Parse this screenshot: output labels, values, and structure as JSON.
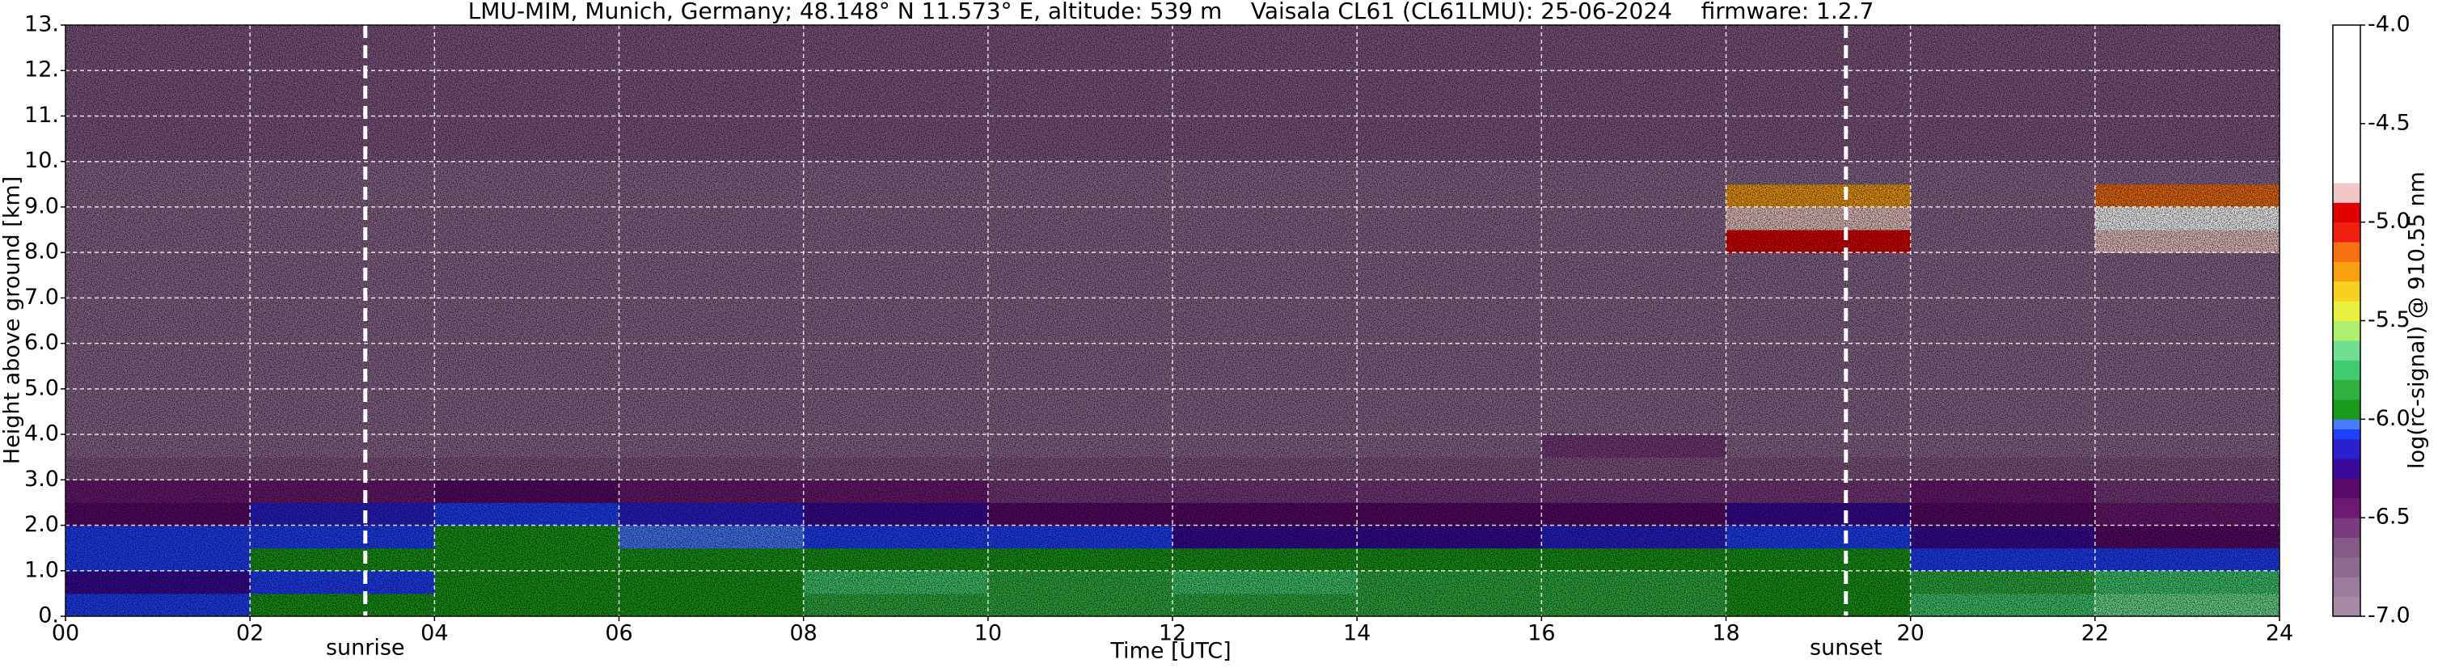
{
  "chart_data": {
    "type": "heatmap",
    "title": "LMU-MIM, Munich, Germany; 48.148° N 11.573° E, altitude: 539 m    Vaisala CL61 (CL61LMU): 25-06-2024    firmware: 1.2.7",
    "x_label": "Time [UTC]",
    "y_label": "Height above ground [km]",
    "colorbar_label": "log(rc-signal) @ 910.55 nm",
    "xlim": [
      0,
      24
    ],
    "ylim": [
      0,
      13
    ],
    "clim": [
      -7,
      -4
    ],
    "grid": true,
    "xticks": [
      {
        "value": 0,
        "label": "00"
      },
      {
        "value": 2,
        "label": "02"
      },
      {
        "value": 4,
        "label": "04"
      },
      {
        "value": 6,
        "label": "06"
      },
      {
        "value": 8,
        "label": "08"
      },
      10,
      12,
      14,
      16,
      18,
      20,
      22,
      24
    ],
    "yticks": [
      {
        "value": 0,
        "label": "0."
      },
      {
        "value": 1,
        "label": "1.0"
      },
      {
        "value": 2,
        "label": "2.0"
      },
      {
        "value": 3,
        "label": "3.0"
      },
      {
        "value": 4,
        "label": "4.0"
      },
      {
        "value": 5,
        "label": "5.0"
      },
      {
        "value": 6,
        "label": "6.0"
      },
      {
        "value": 7,
        "label": "7.0"
      },
      {
        "value": 8,
        "label": "8.0"
      },
      {
        "value": 9,
        "label": "9.0"
      },
      {
        "value": 10,
        "label": "10."
      },
      {
        "value": 11,
        "label": "11."
      },
      {
        "value": 12,
        "label": "12."
      },
      {
        "value": 13,
        "label": "13."
      }
    ],
    "cticks": [
      {
        "value": -4,
        "label": "-4.0"
      },
      -4.5,
      {
        "value": -5,
        "label": "-5.0"
      },
      -5.5,
      {
        "value": -6,
        "label": "-6.0"
      },
      -6.5,
      {
        "value": -7,
        "label": "-7.0"
      }
    ],
    "annotations": [
      {
        "text": "sunrise",
        "x": 3.25
      },
      {
        "text": "sunset",
        "x": 19.3
      }
    ],
    "colorscale": [
      {
        "value": -7.0,
        "color": "#a68aa6"
      },
      {
        "value": -6.9,
        "color": "#9c7c9c"
      },
      {
        "value": -6.8,
        "color": "#8e6a90"
      },
      {
        "value": -6.7,
        "color": "#845a86"
      },
      {
        "value": -6.6,
        "color": "#7a3c7e"
      },
      {
        "value": -6.5,
        "color": "#6e1a74"
      },
      {
        "value": -6.4,
        "color": "#5a0a6a"
      },
      {
        "value": -6.3,
        "color": "#3a0a9a"
      },
      {
        "value": -6.2,
        "color": "#2a20d0"
      },
      {
        "value": -6.1,
        "color": "#2040ff"
      },
      {
        "value": -6.05,
        "color": "#4a7aff"
      },
      {
        "value": -6.0,
        "color": "#1a9a1a"
      },
      {
        "value": -5.9,
        "color": "#30b040"
      },
      {
        "value": -5.8,
        "color": "#40cc70"
      },
      {
        "value": -5.7,
        "color": "#70e090"
      },
      {
        "value": -5.6,
        "color": "#b0f070"
      },
      {
        "value": -5.5,
        "color": "#e8f040"
      },
      {
        "value": -5.4,
        "color": "#f8d020"
      },
      {
        "value": -5.3,
        "color": "#f8a010"
      },
      {
        "value": -5.2,
        "color": "#f87010"
      },
      {
        "value": -5.1,
        "color": "#f02010"
      },
      {
        "value": -5.0,
        "color": "#e00000"
      },
      {
        "value": -4.9,
        "color": "#f0c8c8"
      },
      {
        "value": -4.8,
        "color": "#ffffff"
      }
    ],
    "x_edges": [
      0,
      2,
      4,
      6,
      8,
      10,
      12,
      14,
      16,
      18,
      20,
      22,
      24
    ],
    "y_edges": [
      0,
      0.5,
      1,
      1.5,
      2,
      2.5,
      3,
      3.5,
      4,
      4.5,
      5,
      5.5,
      6,
      6.5,
      7,
      7.5,
      8,
      8.5,
      9,
      9.5,
      10,
      10.5,
      11,
      11.5,
      12,
      12.5,
      13
    ],
    "z": [
      [
        -6.1,
        -6.0,
        -6.0,
        -6.0,
        -5.9,
        -5.9,
        -5.85,
        -5.9,
        -5.9,
        -6.0,
        -5.8,
        -5.7
      ],
      [
        -6.3,
        -6.1,
        -6.0,
        -6.0,
        -5.8,
        -5.9,
        -5.8,
        -5.9,
        -5.9,
        -6.0,
        -5.9,
        -5.8
      ],
      [
        -6.1,
        -6.0,
        -6.0,
        -6.0,
        -6.0,
        -6.0,
        -6.0,
        -6.0,
        -6.0,
        -6.0,
        -6.1,
        -6.1
      ],
      [
        -6.1,
        -6.1,
        -6.0,
        -6.05,
        -6.1,
        -6.1,
        -6.3,
        -6.3,
        -6.2,
        -6.1,
        -6.3,
        -6.4
      ],
      [
        -6.4,
        -6.2,
        -6.1,
        -6.2,
        -6.3,
        -6.4,
        -6.4,
        -6.4,
        -6.4,
        -6.3,
        -6.4,
        -6.5
      ],
      [
        -6.5,
        -6.5,
        -6.4,
        -6.5,
        -6.5,
        -6.6,
        -6.6,
        -6.6,
        -6.6,
        -6.6,
        -6.5,
        -6.6
      ],
      [
        -6.7,
        -6.7,
        -6.7,
        -6.7,
        -6.7,
        -6.7,
        -6.7,
        -6.7,
        -6.7,
        -6.7,
        -6.7,
        -6.7
      ],
      [
        -6.8,
        -6.8,
        -6.8,
        -6.8,
        -6.8,
        -6.8,
        -6.8,
        -6.8,
        -6.6,
        -6.8,
        -6.8,
        -6.8
      ],
      [
        -6.8,
        -6.8,
        -6.8,
        -6.8,
        -6.8,
        -6.8,
        -6.8,
        -6.8,
        -6.8,
        -6.8,
        -6.8,
        -6.8
      ],
      [
        -6.8,
        -6.8,
        -6.8,
        -6.8,
        -6.8,
        -6.8,
        -6.8,
        -6.8,
        -6.8,
        -6.8,
        -6.8,
        -6.8
      ],
      [
        -6.8,
        -6.8,
        -6.8,
        -6.8,
        -6.8,
        -6.8,
        -6.8,
        -6.8,
        -6.8,
        -6.8,
        -6.8,
        -6.8
      ],
      [
        -6.8,
        -6.8,
        -6.8,
        -6.8,
        -6.8,
        -6.8,
        -6.8,
        -6.8,
        -6.8,
        -6.8,
        -6.8,
        -6.8
      ],
      [
        -6.8,
        -6.8,
        -6.8,
        -6.8,
        -6.8,
        -6.8,
        -6.8,
        -6.8,
        -6.8,
        -6.8,
        -6.8,
        -6.8
      ],
      [
        -6.8,
        -6.8,
        -6.8,
        -6.8,
        -6.8,
        -6.8,
        -6.8,
        -6.8,
        -6.8,
        -6.8,
        -6.8,
        -6.8
      ],
      [
        -6.8,
        -6.8,
        -6.8,
        -6.8,
        -6.8,
        -6.8,
        -6.8,
        -6.8,
        -6.8,
        -6.8,
        -6.8,
        -6.8
      ],
      [
        -6.8,
        -6.8,
        -6.8,
        -6.8,
        -6.8,
        -6.8,
        -6.8,
        -6.8,
        -6.8,
        -6.8,
        -6.8,
        -6.8
      ],
      [
        -6.8,
        -6.8,
        -6.8,
        -6.8,
        -6.8,
        -6.8,
        -6.8,
        -6.8,
        -6.8,
        -5.0,
        -6.8,
        -4.9
      ],
      [
        -6.8,
        -6.8,
        -6.8,
        -6.8,
        -6.8,
        -6.8,
        -6.8,
        -6.8,
        -6.8,
        -4.9,
        -6.8,
        -4.8
      ],
      [
        -6.8,
        -6.8,
        -6.8,
        -6.8,
        -6.8,
        -6.8,
        -6.8,
        -6.8,
        -6.8,
        -5.3,
        -6.8,
        -5.2
      ],
      [
        -6.8,
        -6.8,
        -6.8,
        -6.8,
        -6.8,
        -6.8,
        -6.8,
        -6.8,
        -6.8,
        -6.8,
        -6.8,
        -6.8
      ],
      [
        -6.7,
        -6.7,
        -6.7,
        -6.7,
        -6.7,
        -6.7,
        -6.7,
        -6.7,
        -6.7,
        -6.7,
        -6.7,
        -6.7
      ],
      [
        -6.7,
        -6.7,
        -6.7,
        -6.7,
        -6.7,
        -6.7,
        -6.7,
        -6.7,
        -6.7,
        -6.7,
        -6.7,
        -6.7
      ],
      [
        -6.7,
        -6.7,
        -6.7,
        -6.7,
        -6.7,
        -6.7,
        -6.7,
        -6.7,
        -6.7,
        -6.7,
        -6.7,
        -6.7
      ],
      [
        -6.7,
        -6.7,
        -6.7,
        -6.7,
        -6.7,
        -6.7,
        -6.7,
        -6.7,
        -6.7,
        -6.7,
        -6.7,
        -6.7
      ],
      [
        -6.7,
        -6.7,
        -6.7,
        -6.7,
        -6.7,
        -6.7,
        -6.7,
        -6.7,
        -6.7,
        -6.7,
        -6.7,
        -6.7
      ],
      [
        -6.7,
        -6.7,
        -6.7,
        -6.7,
        -6.7,
        -6.7,
        -6.7,
        -6.7,
        -6.7,
        -6.7,
        -6.7,
        -6.7
      ]
    ]
  }
}
